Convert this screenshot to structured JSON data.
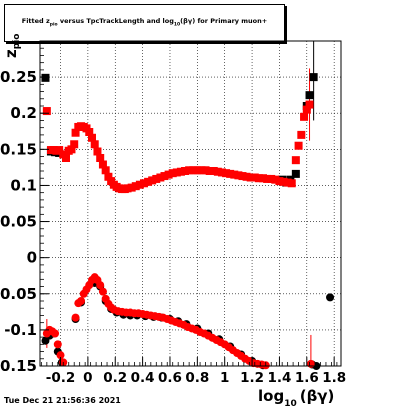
{
  "chart_data": {
    "type": "scatter",
    "title_parts": {
      "t1": "Fitted  z",
      "t2": "pio",
      "t3": " versus TpcTrackLength and log",
      "t4": "10",
      "t5": "(βγ) for Primary muon+"
    },
    "ylabel": "z",
    "ylabel_sub": "pio",
    "xlabel": "log",
    "xlabel_sub": "10",
    "xlabel_tail": "(βγ)",
    "xlim": [
      -0.35,
      1.85
    ],
    "ylim": [
      -0.15,
      0.3
    ],
    "grid": true,
    "x_ticks": [
      {
        "value": -0.2,
        "label": "-0.2"
      },
      {
        "value": 0,
        "label": "0"
      },
      {
        "value": 0.2,
        "label": "0.2"
      },
      {
        "value": 0.4,
        "label": "0.4"
      },
      {
        "value": 0.6,
        "label": "0.6"
      },
      {
        "value": 0.8,
        "label": "0.8"
      },
      {
        "value": 1.0,
        "label": "1"
      },
      {
        "value": 1.2,
        "label": "1.2"
      },
      {
        "value": 1.4,
        "label": "1.4"
      },
      {
        "value": 1.6,
        "label": "1.6"
      },
      {
        "value": 1.8,
        "label": "1.8"
      }
    ],
    "y_ticks": [
      {
        "value": 0.25,
        "label": "0.25"
      },
      {
        "value": 0.2,
        "label": "0.2"
      },
      {
        "value": 0.15,
        "label": "0.15"
      },
      {
        "value": 0.1,
        "label": "0.1"
      },
      {
        "value": 0.05,
        "label": "0.05"
      },
      {
        "value": 0,
        "label": "0"
      },
      {
        "value": -0.05,
        "label": "-0.05"
      },
      {
        "value": -0.1,
        "label": "-0.1"
      },
      {
        "value": -0.15,
        "label": "-0.15"
      }
    ],
    "series": [
      {
        "color": "#000000",
        "marker": "square",
        "points": [
          {
            "x": -0.31,
            "y": 0.249
          },
          {
            "x": -0.27,
            "y": 0.147
          },
          {
            "x": -0.24,
            "y": 0.146
          },
          {
            "x": -0.21,
            "y": 0.145
          },
          {
            "x": 1.42,
            "y": 0.108
          },
          {
            "x": 1.45,
            "y": 0.104
          },
          {
            "x": 1.48,
            "y": 0.108
          },
          {
            "x": 1.52,
            "y": 0.116
          },
          {
            "x": 1.6,
            "y": 0.21
          },
          {
            "x": 1.62,
            "y": 0.225
          },
          {
            "x": 1.65,
            "y": 0.25,
            "yerr": 0.06
          }
        ]
      },
      {
        "color": "#000000",
        "marker": "circle",
        "points": [
          {
            "x": -0.31,
            "y": -0.115
          },
          {
            "x": -0.28,
            "y": -0.108
          },
          {
            "x": -0.25,
            "y": -0.105
          },
          {
            "x": -0.22,
            "y": -0.13
          },
          {
            "x": -0.19,
            "y": -0.145
          },
          {
            "x": -0.09,
            "y": -0.085
          },
          {
            "x": -0.05,
            "y": -0.062
          },
          {
            "x": 0.05,
            "y": -0.035
          },
          {
            "x": 0.09,
            "y": -0.04
          },
          {
            "x": 0.13,
            "y": -0.06
          },
          {
            "x": 0.17,
            "y": -0.071
          },
          {
            "x": 0.21,
            "y": -0.076
          },
          {
            "x": 0.26,
            "y": -0.079
          },
          {
            "x": 0.31,
            "y": -0.08
          },
          {
            "x": 0.36,
            "y": -0.08
          },
          {
            "x": 0.42,
            "y": -0.081
          },
          {
            "x": 0.48,
            "y": -0.082
          },
          {
            "x": 0.54,
            "y": -0.083
          },
          {
            "x": 0.6,
            "y": -0.085
          },
          {
            "x": 0.66,
            "y": -0.088
          },
          {
            "x": 0.72,
            "y": -0.092
          },
          {
            "x": 0.8,
            "y": -0.098
          },
          {
            "x": 0.88,
            "y": -0.105
          },
          {
            "x": 0.96,
            "y": -0.113
          },
          {
            "x": 1.04,
            "y": -0.123
          },
          {
            "x": 1.12,
            "y": -0.134
          },
          {
            "x": 1.2,
            "y": -0.143
          },
          {
            "x": 1.28,
            "y": -0.149
          },
          {
            "x": 1.64,
            "y": -0.148
          },
          {
            "x": 1.67,
            "y": -0.15
          },
          {
            "x": 1.77,
            "y": -0.055
          }
        ]
      },
      {
        "color": "#ff0000",
        "marker": "square",
        "points": [
          {
            "x": -0.3,
            "y": 0.203
          },
          {
            "x": -0.27,
            "y": 0.149
          },
          {
            "x": -0.25,
            "y": 0.149
          },
          {
            "x": -0.23,
            "y": 0.148
          },
          {
            "x": -0.21,
            "y": 0.149
          },
          {
            "x": -0.18,
            "y": 0.143
          },
          {
            "x": -0.16,
            "y": 0.138
          },
          {
            "x": -0.14,
            "y": 0.148
          },
          {
            "x": -0.12,
            "y": 0.15
          },
          {
            "x": -0.1,
            "y": 0.157
          },
          {
            "x": -0.09,
            "y": 0.173
          },
          {
            "x": -0.07,
            "y": 0.181
          },
          {
            "x": -0.05,
            "y": 0.182
          },
          {
            "x": -0.03,
            "y": 0.181
          },
          {
            "x": -0.01,
            "y": 0.179
          },
          {
            "x": 0.01,
            "y": 0.174
          },
          {
            "x": 0.03,
            "y": 0.166
          },
          {
            "x": 0.05,
            "y": 0.157
          },
          {
            "x": 0.07,
            "y": 0.147
          },
          {
            "x": 0.09,
            "y": 0.138
          },
          {
            "x": 0.11,
            "y": 0.129
          },
          {
            "x": 0.13,
            "y": 0.121
          },
          {
            "x": 0.15,
            "y": 0.112
          },
          {
            "x": 0.17,
            "y": 0.106
          },
          {
            "x": 0.19,
            "y": 0.101
          },
          {
            "x": 0.21,
            "y": 0.098
          },
          {
            "x": 0.23,
            "y": 0.096
          },
          {
            "x": 0.25,
            "y": 0.095
          },
          {
            "x": 0.27,
            "y": 0.095
          },
          {
            "x": 0.29,
            "y": 0.096
          },
          {
            "x": 0.32,
            "y": 0.097
          },
          {
            "x": 0.35,
            "y": 0.099
          },
          {
            "x": 0.38,
            "y": 0.101
          },
          {
            "x": 0.41,
            "y": 0.103
          },
          {
            "x": 0.44,
            "y": 0.105
          },
          {
            "x": 0.47,
            "y": 0.107
          },
          {
            "x": 0.5,
            "y": 0.109
          },
          {
            "x": 0.53,
            "y": 0.111
          },
          {
            "x": 0.56,
            "y": 0.113
          },
          {
            "x": 0.59,
            "y": 0.115
          },
          {
            "x": 0.62,
            "y": 0.117
          },
          {
            "x": 0.65,
            "y": 0.118
          },
          {
            "x": 0.68,
            "y": 0.119
          },
          {
            "x": 0.71,
            "y": 0.12
          },
          {
            "x": 0.74,
            "y": 0.121
          },
          {
            "x": 0.77,
            "y": 0.121
          },
          {
            "x": 0.8,
            "y": 0.121
          },
          {
            "x": 0.83,
            "y": 0.121
          },
          {
            "x": 0.86,
            "y": 0.121
          },
          {
            "x": 0.89,
            "y": 0.12
          },
          {
            "x": 0.92,
            "y": 0.12
          },
          {
            "x": 0.95,
            "y": 0.119
          },
          {
            "x": 0.98,
            "y": 0.118
          },
          {
            "x": 1.01,
            "y": 0.117
          },
          {
            "x": 1.04,
            "y": 0.116
          },
          {
            "x": 1.07,
            "y": 0.115
          },
          {
            "x": 1.1,
            "y": 0.114
          },
          {
            "x": 1.13,
            "y": 0.113
          },
          {
            "x": 1.16,
            "y": 0.112
          },
          {
            "x": 1.19,
            "y": 0.111
          },
          {
            "x": 1.22,
            "y": 0.111
          },
          {
            "x": 1.25,
            "y": 0.11
          },
          {
            "x": 1.28,
            "y": 0.11
          },
          {
            "x": 1.31,
            "y": 0.109
          },
          {
            "x": 1.34,
            "y": 0.109
          },
          {
            "x": 1.37,
            "y": 0.108
          },
          {
            "x": 1.4,
            "y": 0.106
          },
          {
            "x": 1.43,
            "y": 0.105
          },
          {
            "x": 1.46,
            "y": 0.104
          },
          {
            "x": 1.49,
            "y": 0.103
          },
          {
            "x": 1.52,
            "y": 0.135
          },
          {
            "x": 1.54,
            "y": 0.155
          },
          {
            "x": 1.56,
            "y": 0.17
          },
          {
            "x": 1.58,
            "y": 0.195
          },
          {
            "x": 1.6,
            "y": 0.205
          },
          {
            "x": 1.62,
            "y": 0.212,
            "yerr": 0.05
          }
        ]
      },
      {
        "color": "#ff0000",
        "marker": "circle",
        "points": [
          {
            "x": -0.3,
            "y": -0.105,
            "yerr": 0.02
          },
          {
            "x": -0.28,
            "y": -0.1
          },
          {
            "x": -0.26,
            "y": -0.102
          },
          {
            "x": -0.24,
            "y": -0.105
          },
          {
            "x": -0.22,
            "y": -0.12
          },
          {
            "x": -0.2,
            "y": -0.135
          },
          {
            "x": -0.18,
            "y": -0.145
          },
          {
            "x": -0.09,
            "y": -0.083
          },
          {
            "x": -0.07,
            "y": -0.063
          },
          {
            "x": -0.05,
            "y": -0.06
          },
          {
            "x": -0.03,
            "y": -0.05
          },
          {
            "x": -0.01,
            "y": -0.044
          },
          {
            "x": 0.01,
            "y": -0.038
          },
          {
            "x": 0.03,
            "y": -0.031
          },
          {
            "x": 0.05,
            "y": -0.027
          },
          {
            "x": 0.07,
            "y": -0.031
          },
          {
            "x": 0.09,
            "y": -0.038
          },
          {
            "x": 0.11,
            "y": -0.047
          },
          {
            "x": 0.13,
            "y": -0.057
          },
          {
            "x": 0.15,
            "y": -0.064
          },
          {
            "x": 0.17,
            "y": -0.069
          },
          {
            "x": 0.19,
            "y": -0.072
          },
          {
            "x": 0.22,
            "y": -0.074
          },
          {
            "x": 0.25,
            "y": -0.075
          },
          {
            "x": 0.28,
            "y": -0.076
          },
          {
            "x": 0.31,
            "y": -0.076
          },
          {
            "x": 0.34,
            "y": -0.077
          },
          {
            "x": 0.37,
            "y": -0.077
          },
          {
            "x": 0.4,
            "y": -0.078
          },
          {
            "x": 0.43,
            "y": -0.079
          },
          {
            "x": 0.46,
            "y": -0.08
          },
          {
            "x": 0.49,
            "y": -0.081
          },
          {
            "x": 0.52,
            "y": -0.082
          },
          {
            "x": 0.55,
            "y": -0.083
          },
          {
            "x": 0.58,
            "y": -0.085
          },
          {
            "x": 0.61,
            "y": -0.087
          },
          {
            "x": 0.64,
            "y": -0.089
          },
          {
            "x": 0.67,
            "y": -0.091
          },
          {
            "x": 0.7,
            "y": -0.093
          },
          {
            "x": 0.73,
            "y": -0.096
          },
          {
            "x": 0.76,
            "y": -0.098
          },
          {
            "x": 0.79,
            "y": -0.1
          },
          {
            "x": 0.82,
            "y": -0.103
          },
          {
            "x": 0.85,
            "y": -0.105
          },
          {
            "x": 0.88,
            "y": -0.108
          },
          {
            "x": 0.91,
            "y": -0.111
          },
          {
            "x": 0.94,
            "y": -0.114
          },
          {
            "x": 0.97,
            "y": -0.117
          },
          {
            "x": 1.0,
            "y": -0.12
          },
          {
            "x": 1.03,
            "y": -0.124
          },
          {
            "x": 1.06,
            "y": -0.128
          },
          {
            "x": 1.09,
            "y": -0.132
          },
          {
            "x": 1.12,
            "y": -0.136
          },
          {
            "x": 1.15,
            "y": -0.14
          },
          {
            "x": 1.18,
            "y": -0.143
          },
          {
            "x": 1.21,
            "y": -0.146
          },
          {
            "x": 1.24,
            "y": -0.147
          },
          {
            "x": 1.27,
            "y": -0.148
          },
          {
            "x": 1.3,
            "y": -0.149
          },
          {
            "x": 1.63,
            "y": -0.147,
            "yerr": 0.04
          }
        ]
      }
    ]
  },
  "datestamp": "Tue Dec 21 21:56:36 2021"
}
